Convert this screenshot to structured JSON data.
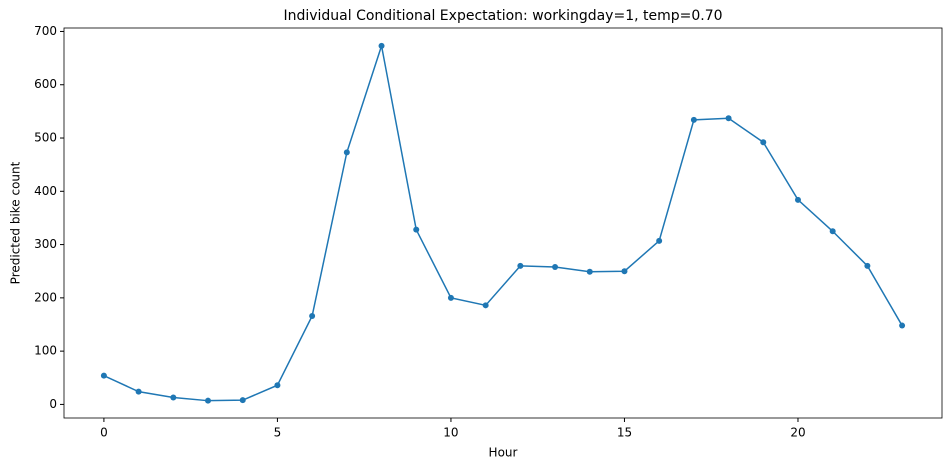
{
  "chart_data": {
    "type": "line",
    "title": "Individual Conditional Expectation: workingday=1, temp=0.70",
    "x_label": "Hour",
    "y_label": "Predicted bike count",
    "x": [
      0,
      1,
      2,
      3,
      4,
      5,
      6,
      7,
      8,
      9,
      10,
      11,
      12,
      13,
      14,
      15,
      16,
      17,
      18,
      19,
      20,
      21,
      22,
      23
    ],
    "series": [
      {
        "color": "#1f77b4",
        "values": [
          54,
          24,
          13,
          7,
          8,
          36,
          166,
          473,
          673,
          328,
          200,
          186,
          260,
          258,
          249,
          250,
          307,
          534,
          537,
          492,
          384,
          325,
          260,
          148
        ]
      }
    ],
    "xlim": [
      -1.15,
      24.15
    ],
    "xticks": [
      0,
      5,
      10,
      15,
      20
    ],
    "ylim": [
      -25.5,
      706.5
    ],
    "yticks": [
      0,
      100,
      200,
      300,
      400,
      500,
      600,
      700
    ],
    "grid": false,
    "markers": true
  }
}
